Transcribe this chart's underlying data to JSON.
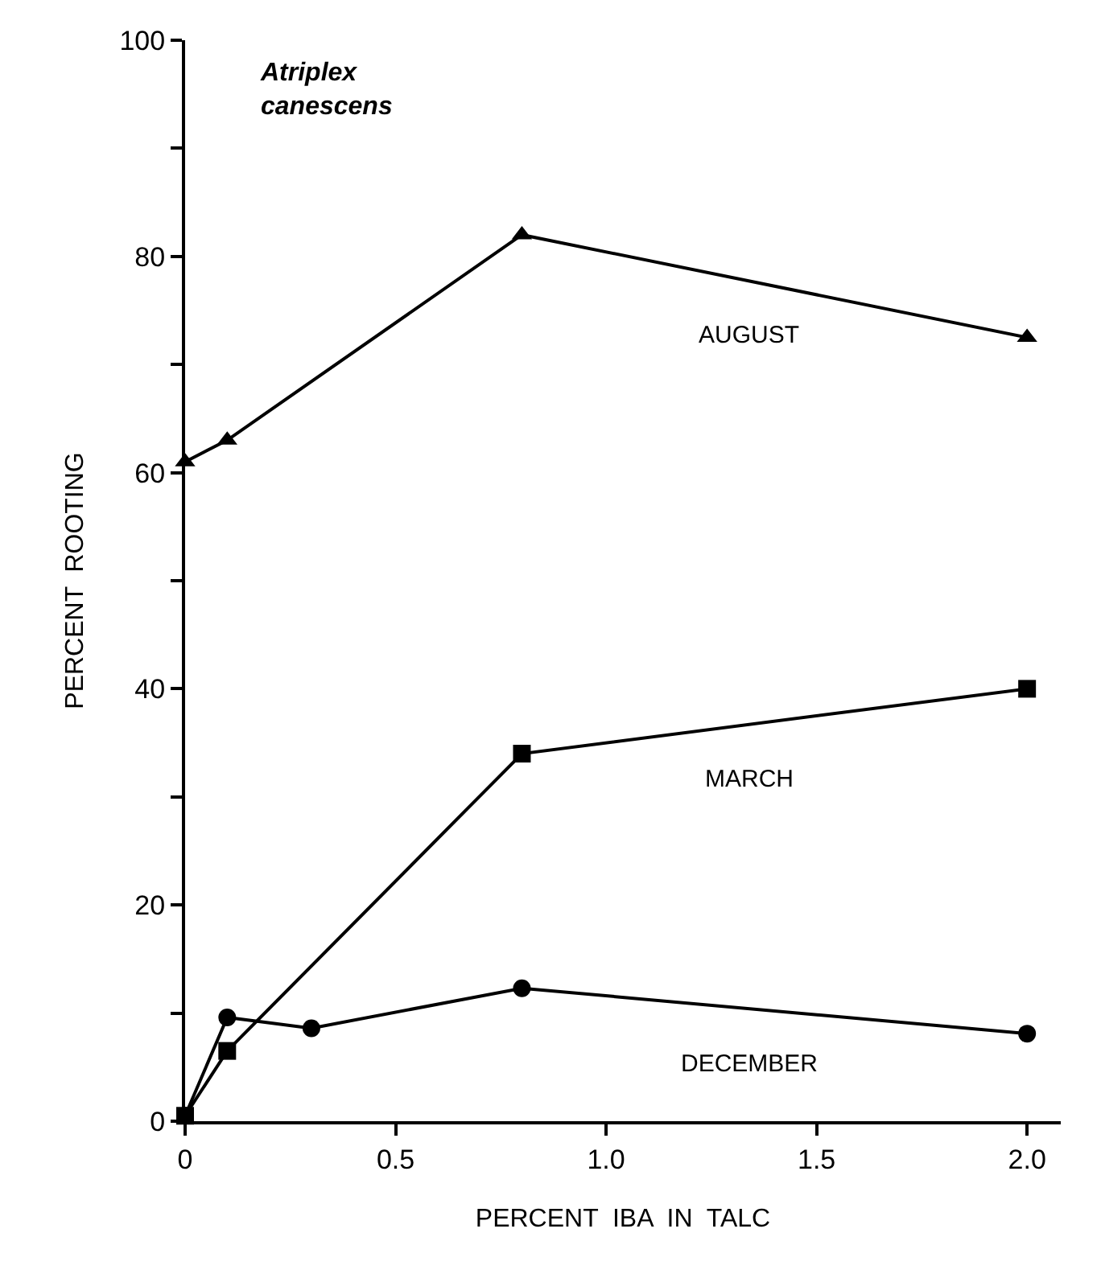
{
  "chart_data": {
    "type": "line",
    "xlabel": "PERCENT  IBA  IN  TALC",
    "ylabel": "PERCENT  ROOTING",
    "annotations": [
      "Atriplex\ncanescens"
    ],
    "series": [
      {
        "name": "AUGUST",
        "color": "#000000",
        "marker": "triangle",
        "x": [
          0,
          0.1,
          0.8,
          2.0
        ],
        "values": [
          61,
          63,
          82,
          72.5
        ]
      },
      {
        "name": "MARCH",
        "color": "#000000",
        "marker": "square",
        "x": [
          0,
          0.1,
          0.8,
          2.0
        ],
        "values": [
          0.5,
          6.5,
          34,
          40
        ]
      },
      {
        "name": "DECEMBER",
        "color": "#000000",
        "marker": "circle",
        "x": [
          0,
          0.1,
          0.3,
          0.8,
          2.0
        ],
        "values": [
          0.5,
          9.6,
          8.6,
          12.3,
          8.1
        ]
      }
    ],
    "xlim": [
      0,
      2.08
    ],
    "ylim": [
      0,
      100
    ],
    "xticks": [
      0,
      0.5,
      {
        "value": 1.0,
        "label": "1.0"
      },
      1.5,
      {
        "value": 2.0,
        "label": "2.0"
      }
    ],
    "yticks": [
      0,
      {
        "value": 10,
        "label": null
      },
      20,
      {
        "value": 30,
        "label": null
      },
      40,
      {
        "value": 50,
        "label": null
      },
      60,
      {
        "value": 70,
        "label": null
      },
      80,
      {
        "value": 90,
        "label": null
      },
      100
    ],
    "legend": false,
    "line_style": "solid"
  }
}
